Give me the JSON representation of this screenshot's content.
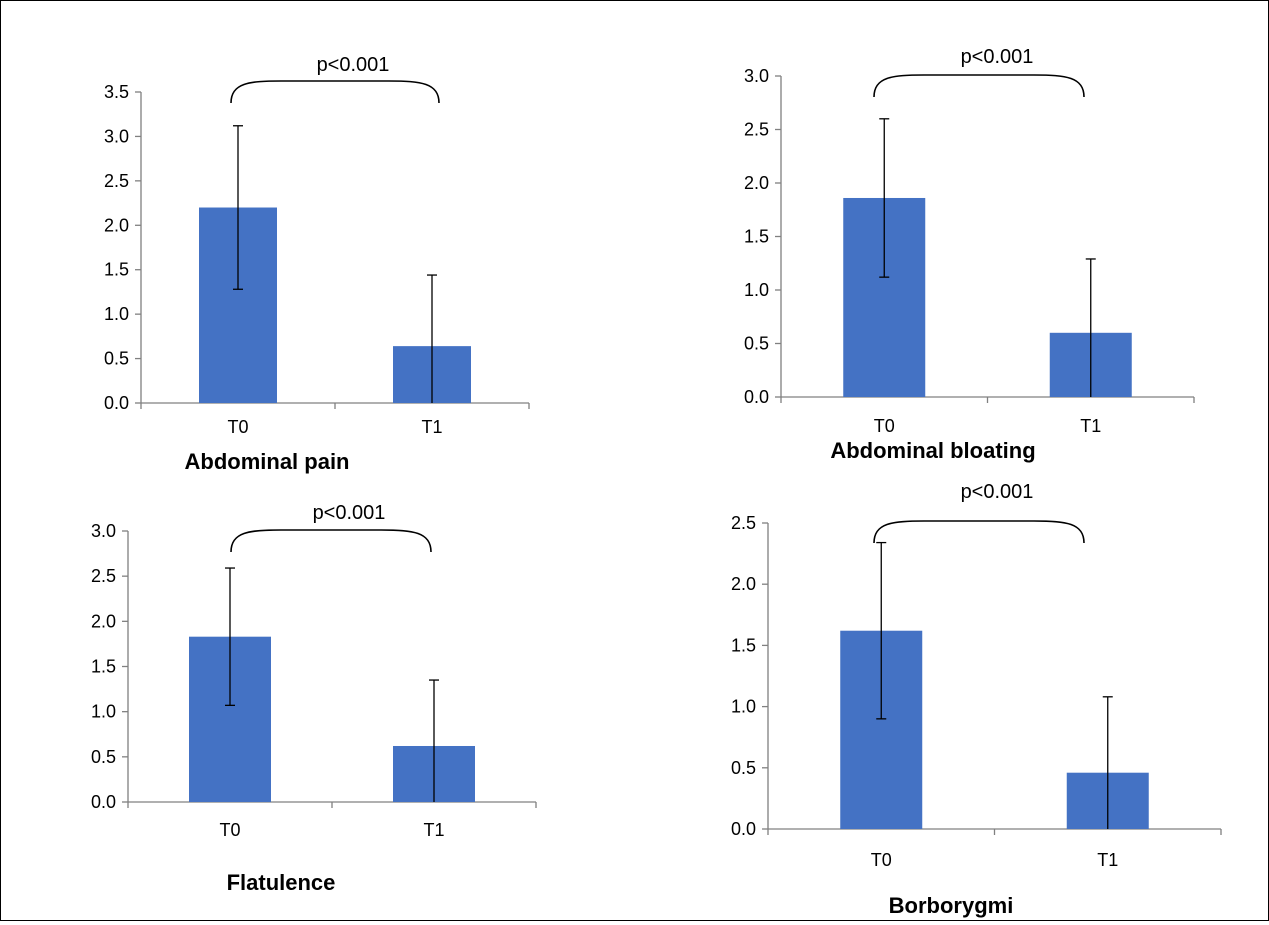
{
  "figure": {
    "accent_color": "#4472C4"
  },
  "chart_data": [
    {
      "type": "bar",
      "title": "Abdominal pain",
      "categories": [
        "T0",
        "T1"
      ],
      "values": [
        2.2,
        0.64
      ],
      "error_upper": [
        3.12,
        1.44
      ],
      "error_lower": [
        1.28,
        0.0
      ],
      "ylim": [
        0,
        3.5
      ],
      "yticks": [
        "0.0",
        "0.5",
        "1.0",
        "1.5",
        "2.0",
        "2.5",
        "3.0",
        "3.5"
      ],
      "annotation": "p<0.001",
      "bar_color": "#4472C4",
      "grid": false
    },
    {
      "type": "bar",
      "title": "Abdominal bloating",
      "categories": [
        "T0",
        "T1"
      ],
      "values": [
        1.86,
        0.6
      ],
      "error_upper": [
        2.6,
        1.29
      ],
      "error_lower": [
        1.12,
        0.0
      ],
      "ylim": [
        0,
        3.0
      ],
      "yticks": [
        "0.0",
        "0.5",
        "1.0",
        "1.5",
        "2.0",
        "2.5",
        "3.0"
      ],
      "annotation": "p<0.001",
      "bar_color": "#4472C4",
      "grid": false
    },
    {
      "type": "bar",
      "title": "Flatulence",
      "categories": [
        "T0",
        "T1"
      ],
      "values": [
        1.83,
        0.62
      ],
      "error_upper": [
        2.59,
        1.35
      ],
      "error_lower": [
        1.07,
        0.0
      ],
      "ylim": [
        0,
        3.0
      ],
      "yticks": [
        "0.0",
        "0.5",
        "1.0",
        "1.5",
        "2.0",
        "2.5",
        "3.0"
      ],
      "annotation": "p<0.001",
      "bar_color": "#4472C4",
      "grid": false
    },
    {
      "type": "bar",
      "title": "Borborygmi",
      "categories": [
        "T0",
        "T1"
      ],
      "values": [
        1.62,
        0.46
      ],
      "error_upper": [
        2.34,
        1.08
      ],
      "error_lower": [
        0.9,
        0.0
      ],
      "ylim": [
        0,
        2.5
      ],
      "yticks": [
        "0.0",
        "0.5",
        "1.0",
        "1.5",
        "2.0",
        "2.5"
      ],
      "annotation": "p<0.001",
      "bar_color": "#4472C4",
      "grid": false
    }
  ]
}
